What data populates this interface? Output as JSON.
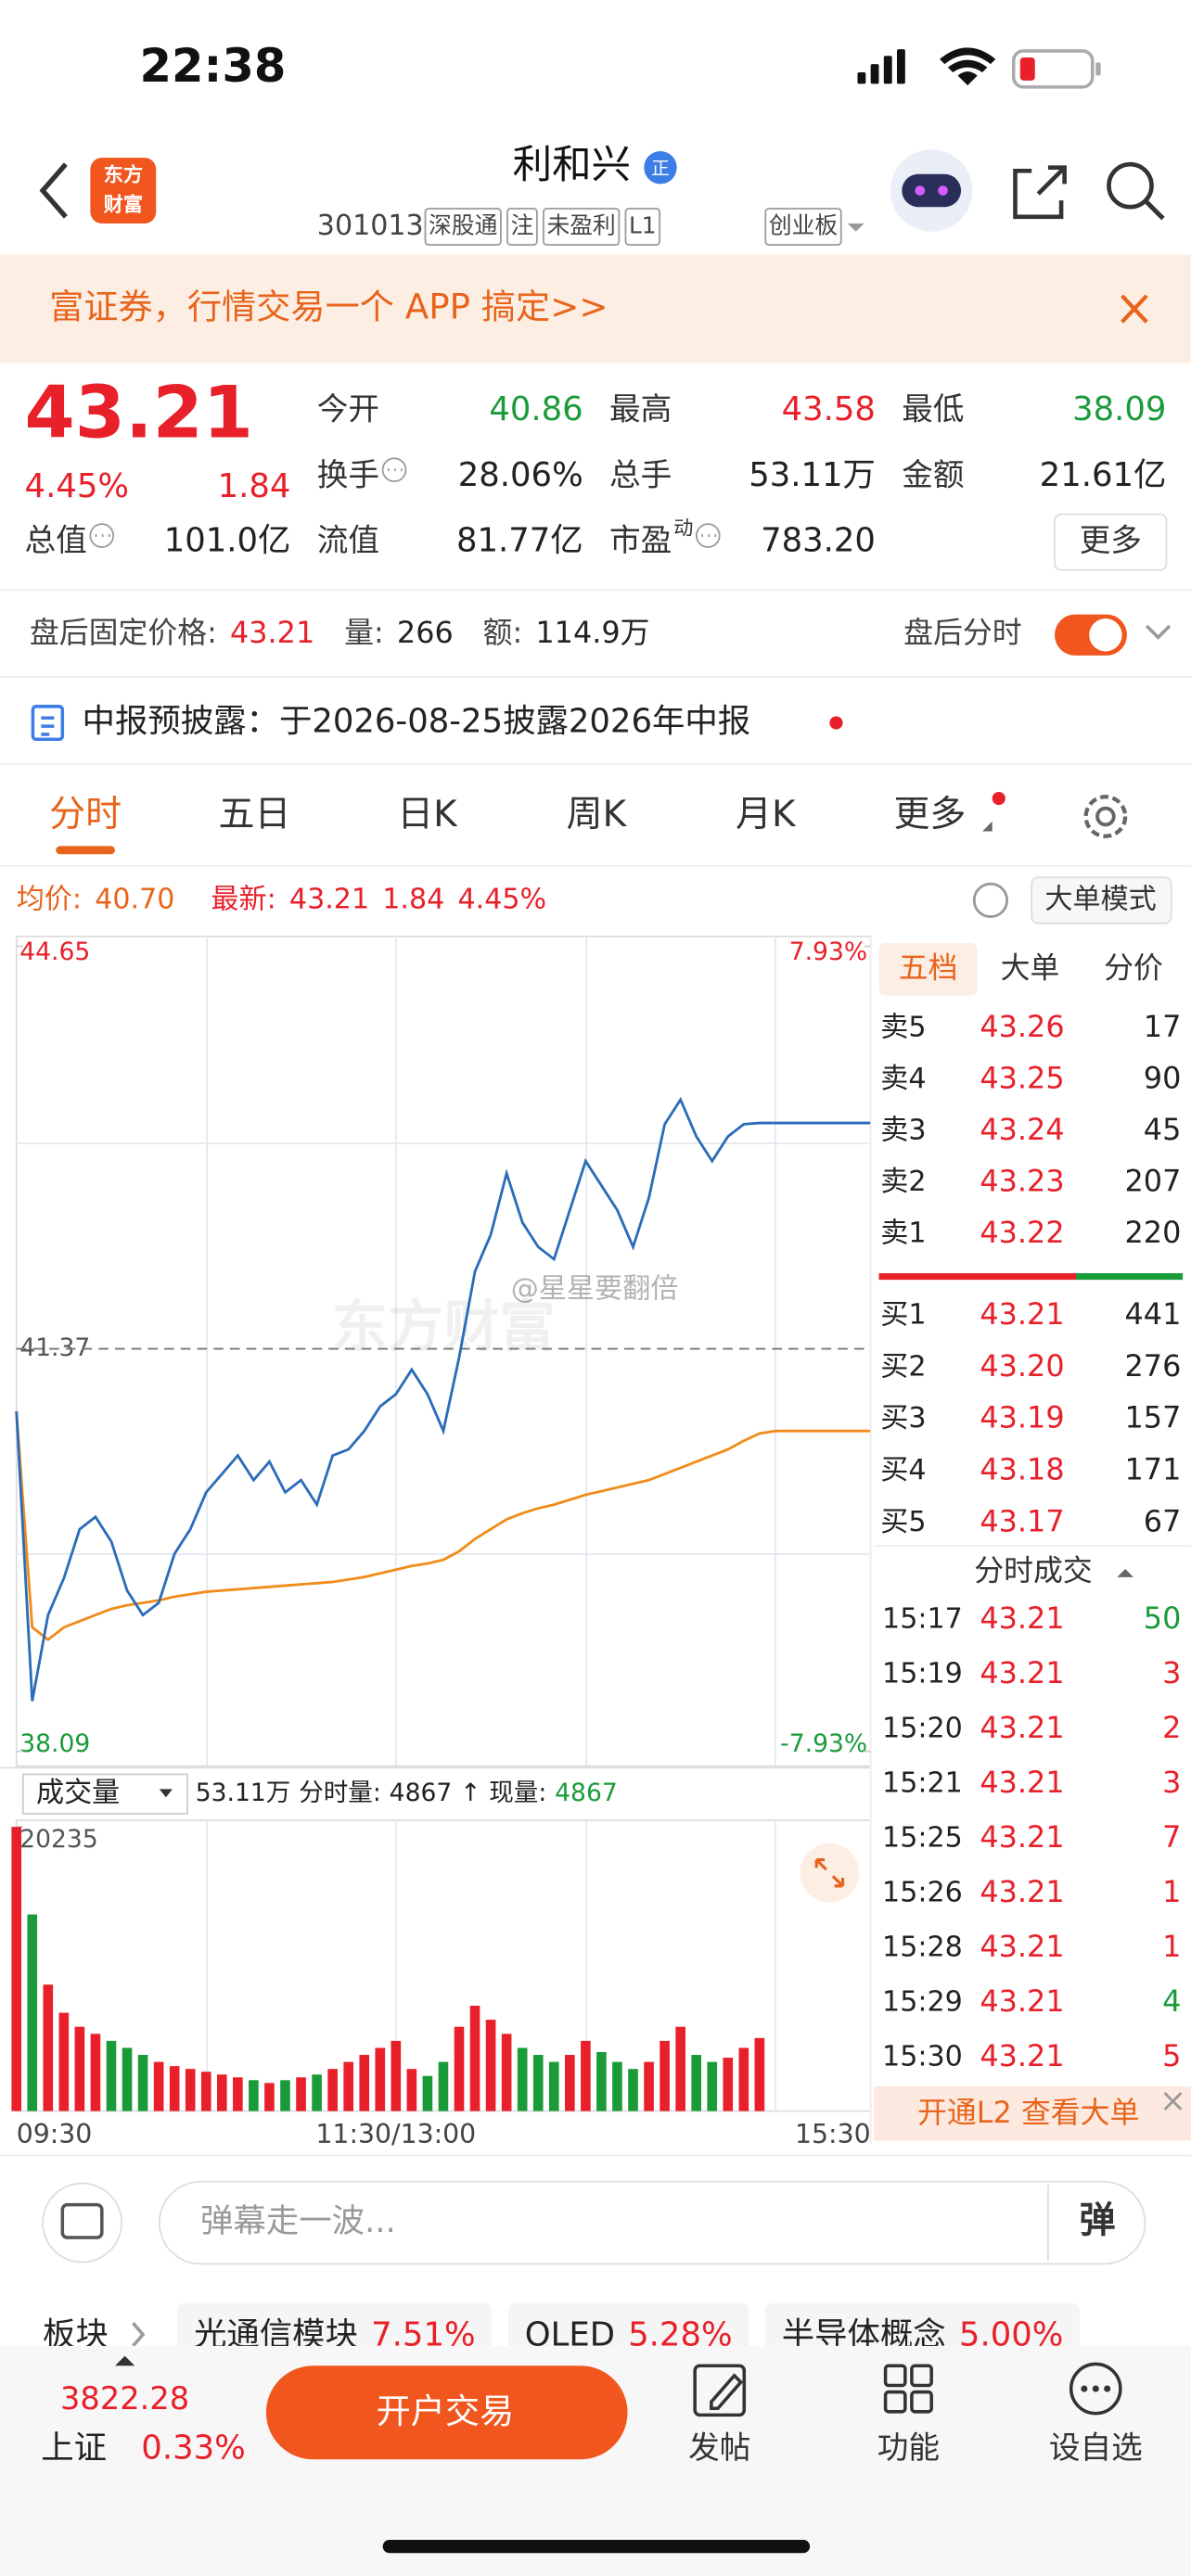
{
  "status": {
    "time": "22:38"
  },
  "header": {
    "logo": [
      "东方",
      "财富"
    ],
    "title": "利和兴",
    "badge": "正",
    "code": "301013",
    "tags": [
      "深股通",
      "注",
      "未盈利",
      "L1"
    ],
    "board": "创业板"
  },
  "banner": {
    "text": "富证券，行情交易一个 APP 搞定>>"
  },
  "quote": {
    "price": "43.21",
    "change_pct": "4.45%",
    "change": "1.84",
    "pe_sup": "动",
    "more": "更多",
    "fields": [
      {
        "label": "今开",
        "value": "40.86",
        "color": "#1a9b3a"
      },
      {
        "label": "最高",
        "value": "43.58",
        "color": "#e8202a"
      },
      {
        "label": "最低",
        "value": "38.09",
        "color": "#1a9b3a"
      },
      {
        "label": "换手",
        "value": "28.06%"
      },
      {
        "label": "总手",
        "value": "53.11万"
      },
      {
        "label": "金额",
        "value": "21.61亿"
      },
      {
        "label": "总值",
        "value": "101.0亿"
      },
      {
        "label": "流值",
        "value": "81.77亿"
      },
      {
        "label": "市盈",
        "value": "783.20"
      }
    ]
  },
  "after_hours": {
    "label": "盘后固定价格:",
    "price": "43.21",
    "vol_label": "量:",
    "vol": "266",
    "amt_label": "额:",
    "amt": "114.9万",
    "toggle_label": "盘后分时"
  },
  "notice": {
    "text": "中报预披露：于2026-08-25披露2026年中报"
  },
  "tabs": {
    "items": [
      "分时",
      "五日",
      "日K",
      "周K",
      "月K",
      "更多"
    ],
    "active": 0
  },
  "info_bar": {
    "avg_label": "均价:",
    "avg": "40.70",
    "latest_label": "最新:",
    "latest": "43.21",
    "change": "1.84",
    "pct": "4.45%",
    "mode": "大单模式"
  },
  "watermark": {
    "user": "@星星要翻倍",
    "brand": "东方财富"
  },
  "chart_data": {
    "type": "line",
    "categories": [
      "09:30",
      null,
      null,
      null,
      null,
      null,
      null,
      null,
      null,
      null,
      null,
      null,
      null,
      null,
      null,
      null,
      null,
      null,
      null,
      null,
      null,
      null,
      null,
      null,
      "11:30/13:00",
      null,
      null,
      null,
      null,
      null,
      null,
      null,
      null,
      null,
      null,
      null,
      null,
      null,
      null,
      null,
      null,
      null,
      null,
      null,
      null,
      null,
      null,
      null,
      null,
      null,
      null,
      null,
      null,
      null,
      "15:30"
    ],
    "series": [
      {
        "color": "#2b6cb8",
        "values": [
          40.86,
          38.5,
          39.2,
          39.5,
          39.9,
          40.0,
          39.8,
          39.4,
          39.2,
          39.3,
          39.7,
          39.9,
          40.2,
          40.35,
          40.5,
          40.3,
          40.45,
          40.2,
          40.3,
          40.1,
          40.5,
          40.55,
          40.7,
          40.9,
          41.0,
          41.2,
          41.0,
          40.7,
          41.3,
          42.0,
          42.3,
          42.8,
          42.4,
          42.2,
          42.1,
          42.5,
          42.9,
          42.7,
          42.5,
          42.2,
          42.6,
          43.2,
          43.4,
          43.1,
          42.9,
          43.1,
          43.2,
          43.21,
          43.21,
          43.21,
          43.21,
          43.21,
          43.21,
          43.21,
          43.21
        ]
      },
      {
        "color": "#f08c1a",
        "values": [
          40.86,
          39.1,
          39.0,
          39.1,
          39.15,
          39.2,
          39.25,
          39.28,
          39.3,
          39.32,
          39.35,
          39.37,
          39.39,
          39.4,
          39.41,
          39.42,
          39.43,
          39.44,
          39.45,
          39.46,
          39.47,
          39.49,
          39.51,
          39.54,
          39.57,
          39.6,
          39.62,
          39.65,
          39.72,
          39.82,
          39.9,
          39.98,
          40.03,
          40.07,
          40.1,
          40.14,
          40.18,
          40.21,
          40.24,
          40.27,
          40.3,
          40.35,
          40.4,
          40.45,
          40.5,
          40.55,
          40.62,
          40.68,
          40.7,
          40.7,
          40.7,
          40.7,
          40.7,
          40.7,
          40.7
        ]
      }
    ],
    "ylim": [
      38.09,
      44.65
    ],
    "yticks": [
      44.65,
      41.37,
      38.09
    ],
    "y2lim": [
      -7.93,
      7.93
    ],
    "y2ticks": [
      {
        "value": 7.93,
        "label": "7.93%"
      },
      {
        "value": -7.93,
        "label": "-7.93%"
      }
    ],
    "grid": true,
    "volume": {
      "label": "成交量",
      "total": "53.11万",
      "bar_label": "分时量:",
      "bar_value": "4867",
      "arrow": "↑",
      "now_label": "现量:",
      "now_value": "4867",
      "ylim": [
        0,
        20235
      ],
      "yticks": [
        20235
      ],
      "up_color": "#e8202a",
      "down_color": "#1a9b3a",
      "values": [
        20235,
        14000,
        9000,
        7000,
        6000,
        5500,
        5000,
        4500,
        4000,
        3500,
        3200,
        3000,
        2800,
        2600,
        2400,
        2200,
        2000,
        2200,
        2400,
        2600,
        3000,
        3500,
        4000,
        4500,
        5000,
        3000,
        2500,
        3500,
        6000,
        7500,
        6500,
        5500,
        4500,
        4000,
        3500,
        4000,
        5000,
        4200,
        3500,
        3000,
        3500,
        5000,
        6000,
        4000,
        3500,
        3800,
        4500,
        5200
      ]
    }
  },
  "order_book": {
    "tabs": [
      "五档",
      "大单",
      "分价"
    ],
    "asks": [
      {
        "label": "卖5",
        "price": "43.26",
        "qty": "17"
      },
      {
        "label": "卖4",
        "price": "43.25",
        "qty": "90"
      },
      {
        "label": "卖3",
        "price": "43.24",
        "qty": "45"
      },
      {
        "label": "卖2",
        "price": "43.23",
        "qty": "207"
      },
      {
        "label": "卖1",
        "price": "43.22",
        "qty": "220"
      }
    ],
    "bids": [
      {
        "label": "买1",
        "price": "43.21",
        "qty": "441"
      },
      {
        "label": "买2",
        "price": "43.20",
        "qty": "276"
      },
      {
        "label": "买3",
        "price": "43.19",
        "qty": "157"
      },
      {
        "label": "买4",
        "price": "43.18",
        "qty": "171"
      },
      {
        "label": "买5",
        "price": "43.17",
        "qty": "67"
      }
    ]
  },
  "trades": {
    "title": "分时成交",
    "l2": "开通L2 查看大单",
    "rows": [
      {
        "time": "15:17",
        "price": "43.21",
        "qty": "50",
        "color": "#1a9b3a"
      },
      {
        "time": "15:19",
        "price": "43.21",
        "qty": "3",
        "color": "#e8202a"
      },
      {
        "time": "15:20",
        "price": "43.21",
        "qty": "2",
        "color": "#e8202a"
      },
      {
        "time": "15:21",
        "price": "43.21",
        "qty": "3",
        "color": "#e8202a"
      },
      {
        "time": "15:25",
        "price": "43.21",
        "qty": "7",
        "color": "#e8202a"
      },
      {
        "time": "15:26",
        "price": "43.21",
        "qty": "1",
        "color": "#e8202a"
      },
      {
        "time": "15:28",
        "price": "43.21",
        "qty": "1",
        "color": "#e8202a"
      },
      {
        "time": "15:29",
        "price": "43.21",
        "qty": "4",
        "color": "#1a9b3a"
      },
      {
        "time": "15:30",
        "price": "43.21",
        "qty": "5",
        "color": "#e8202a"
      }
    ]
  },
  "comment": {
    "placeholder": "弹幕走一波...",
    "button": "弹"
  },
  "sectors": {
    "label": "板块",
    "items": [
      {
        "name": "光通信模块",
        "pct": "7.51%"
      },
      {
        "name": "OLED",
        "pct": "5.28%"
      },
      {
        "name": "半导体概念",
        "pct": "5.00%"
      }
    ]
  },
  "bottom": {
    "index_value": "3822.28",
    "index_name": "上证",
    "index_pct": "0.33%",
    "trade": "开户交易",
    "nav": [
      "发帖",
      "功能",
      "设自选"
    ]
  }
}
